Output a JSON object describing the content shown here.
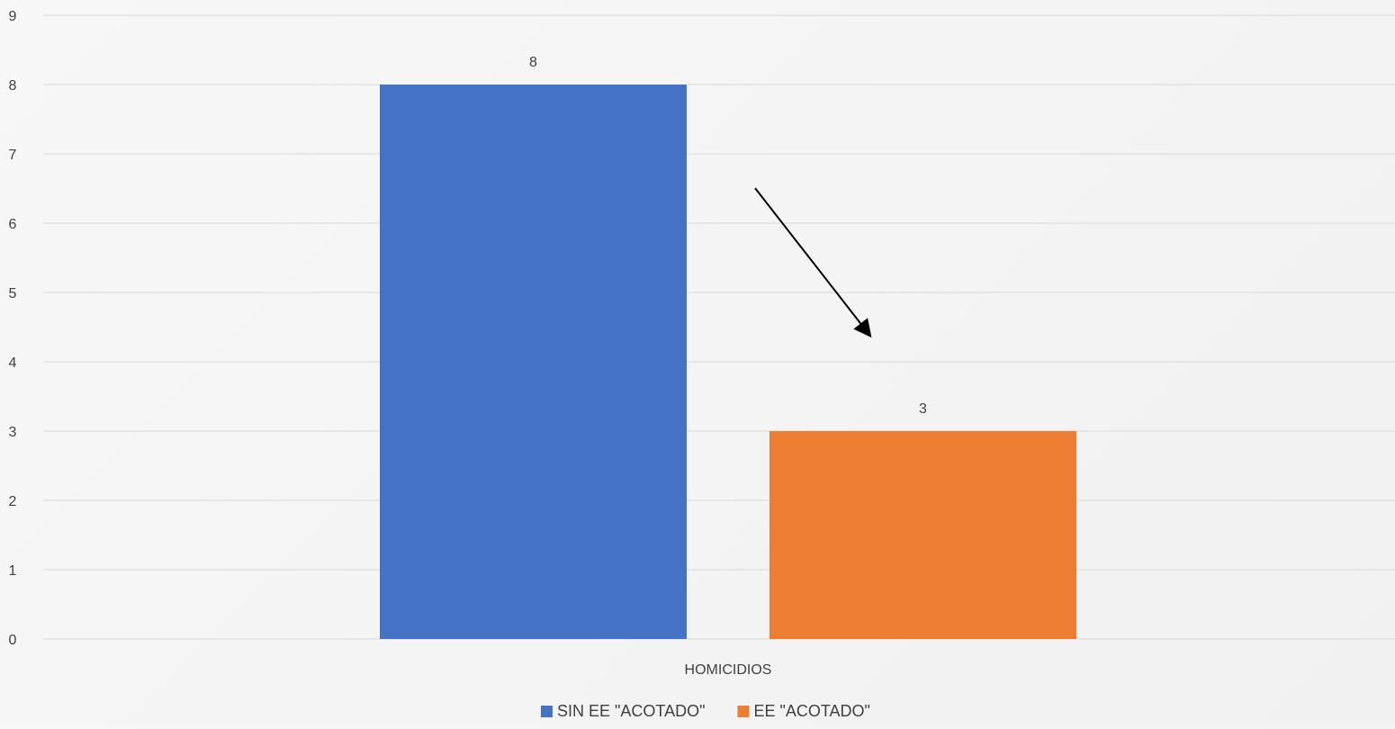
{
  "chart_data": {
    "type": "bar",
    "categories": [
      "HOMICIDIOS"
    ],
    "series": [
      {
        "name": "SIN EE \"ACOTADO\"",
        "values": [
          8
        ],
        "color": "#4472C4"
      },
      {
        "name": "EE \"ACOTADO\"",
        "values": [
          3
        ],
        "color": "#ED7D31"
      }
    ],
    "ylim": [
      0,
      9
    ],
    "yticks": [
      0,
      1,
      2,
      3,
      4,
      5,
      6,
      7,
      8,
      9
    ],
    "data_labels": true,
    "grid": true,
    "legend_position": "bottom",
    "annotation": "arrow from first bar to second bar"
  }
}
